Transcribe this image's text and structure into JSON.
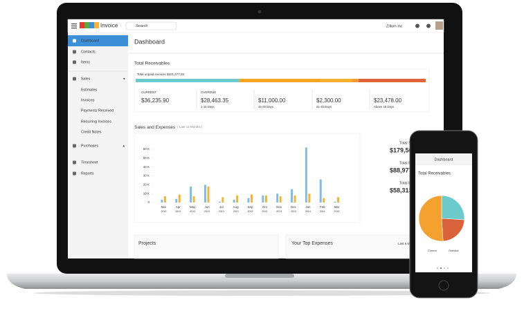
{
  "topbar": {
    "brand": "Invoice",
    "search": "Search",
    "org": "Zillum Inc"
  },
  "sidebar": [
    "Dashboard",
    "Contacts",
    "Items",
    "Sales",
    "Estimates",
    "Invoices",
    "Payments Received",
    "Recurring Invoices",
    "Credit Notes",
    "Purchases",
    "Timesheet",
    "Reports"
  ],
  "page_title": "Dashboard",
  "receivables": {
    "title": "Total Receivables",
    "total": "Total unpaid invoices $101,477.25",
    "items": [
      {
        "label": "CURRENT",
        "amount": 36235.9,
        "amount_label": "$36,235.90",
        "color": "#6ccaca"
      },
      {
        "label": "OVERDUE",
        "amount": 28463.35,
        "amount_label": "$28,463.35",
        "note": "1-15 Days",
        "color": "#f5a623"
      },
      {
        "amount": 11000,
        "amount_label": "$11,000.00",
        "note": "16-30 Days",
        "color": "#f7b12e"
      },
      {
        "amount": 2300,
        "amount_label": "$2,300.00",
        "note": "31-45 Days",
        "color": "#f39a35"
      },
      {
        "amount": 23478,
        "amount_label": "$23,478.00",
        "note": "Above 45 Days",
        "color": "#e0633b"
      }
    ]
  },
  "sales_chart": {
    "type": "bar",
    "title": "Sales and Expenses",
    "subtitle": "( Last 12 Months )",
    "categories": [
      [
        "Mar",
        "2013"
      ],
      [
        "Apr",
        "2013"
      ],
      [
        "May",
        "2013"
      ],
      [
        "Jun",
        "2013"
      ],
      [
        "Jul",
        "2013"
      ],
      [
        "Aug",
        "2013"
      ],
      [
        "Sep",
        "2013"
      ],
      [
        "Oct",
        "2013"
      ],
      [
        "Nov",
        "2013"
      ],
      [
        "Dec",
        "2013"
      ],
      [
        "Jan",
        "2014"
      ],
      [
        "Feb",
        "2014"
      ],
      [
        "Mar",
        "2014"
      ]
    ],
    "series": [
      {
        "color": "#7dbde8",
        "values": [
          3000,
          4000,
          18000,
          20000,
          1000,
          3000,
          5000,
          8000,
          10000,
          15000,
          62000,
          26000,
          1000
        ]
      },
      {
        "color": "#f5b335",
        "values": [
          7000,
          9000,
          7000,
          18000,
          6000,
          8000,
          9000,
          8000,
          7000,
          8000,
          10000,
          5000,
          6000
        ]
      }
    ],
    "ylim": [
      0,
      65000
    ],
    "yticks": [
      0,
      {
        "value": 10000,
        "label": "10 K"
      },
      {
        "value": 20000,
        "label": "20 K"
      },
      {
        "value": 30000,
        "label": "30 K"
      },
      {
        "value": 40000,
        "label": "40 K"
      },
      {
        "value": 50000,
        "label": "50 K"
      },
      {
        "value": 60000,
        "label": "60 K"
      }
    ]
  },
  "totals": [
    {
      "label": "Total Sa",
      "value": "$179,50",
      "color": "#3d8fd8"
    },
    {
      "label": "Total Recei",
      "value": "$88,977",
      "color": "#5aab3a"
    },
    {
      "label": "Total Expe",
      "value": "$58,313",
      "color": "#e0633b"
    }
  ],
  "bottom": {
    "projects": "Projects",
    "expenses": "Your Top Expenses",
    "period": "Last 6 M"
  },
  "phone": {
    "title": "Dashboard",
    "subtitle": "Total Receivables",
    "legend": [
      "Current",
      "Overdue"
    ],
    "pie": {
      "type": "pie",
      "values": [
        26,
        23,
        51
      ],
      "colors": [
        "#6ccaca",
        "#d9623a",
        "#f5a130"
      ]
    }
  }
}
